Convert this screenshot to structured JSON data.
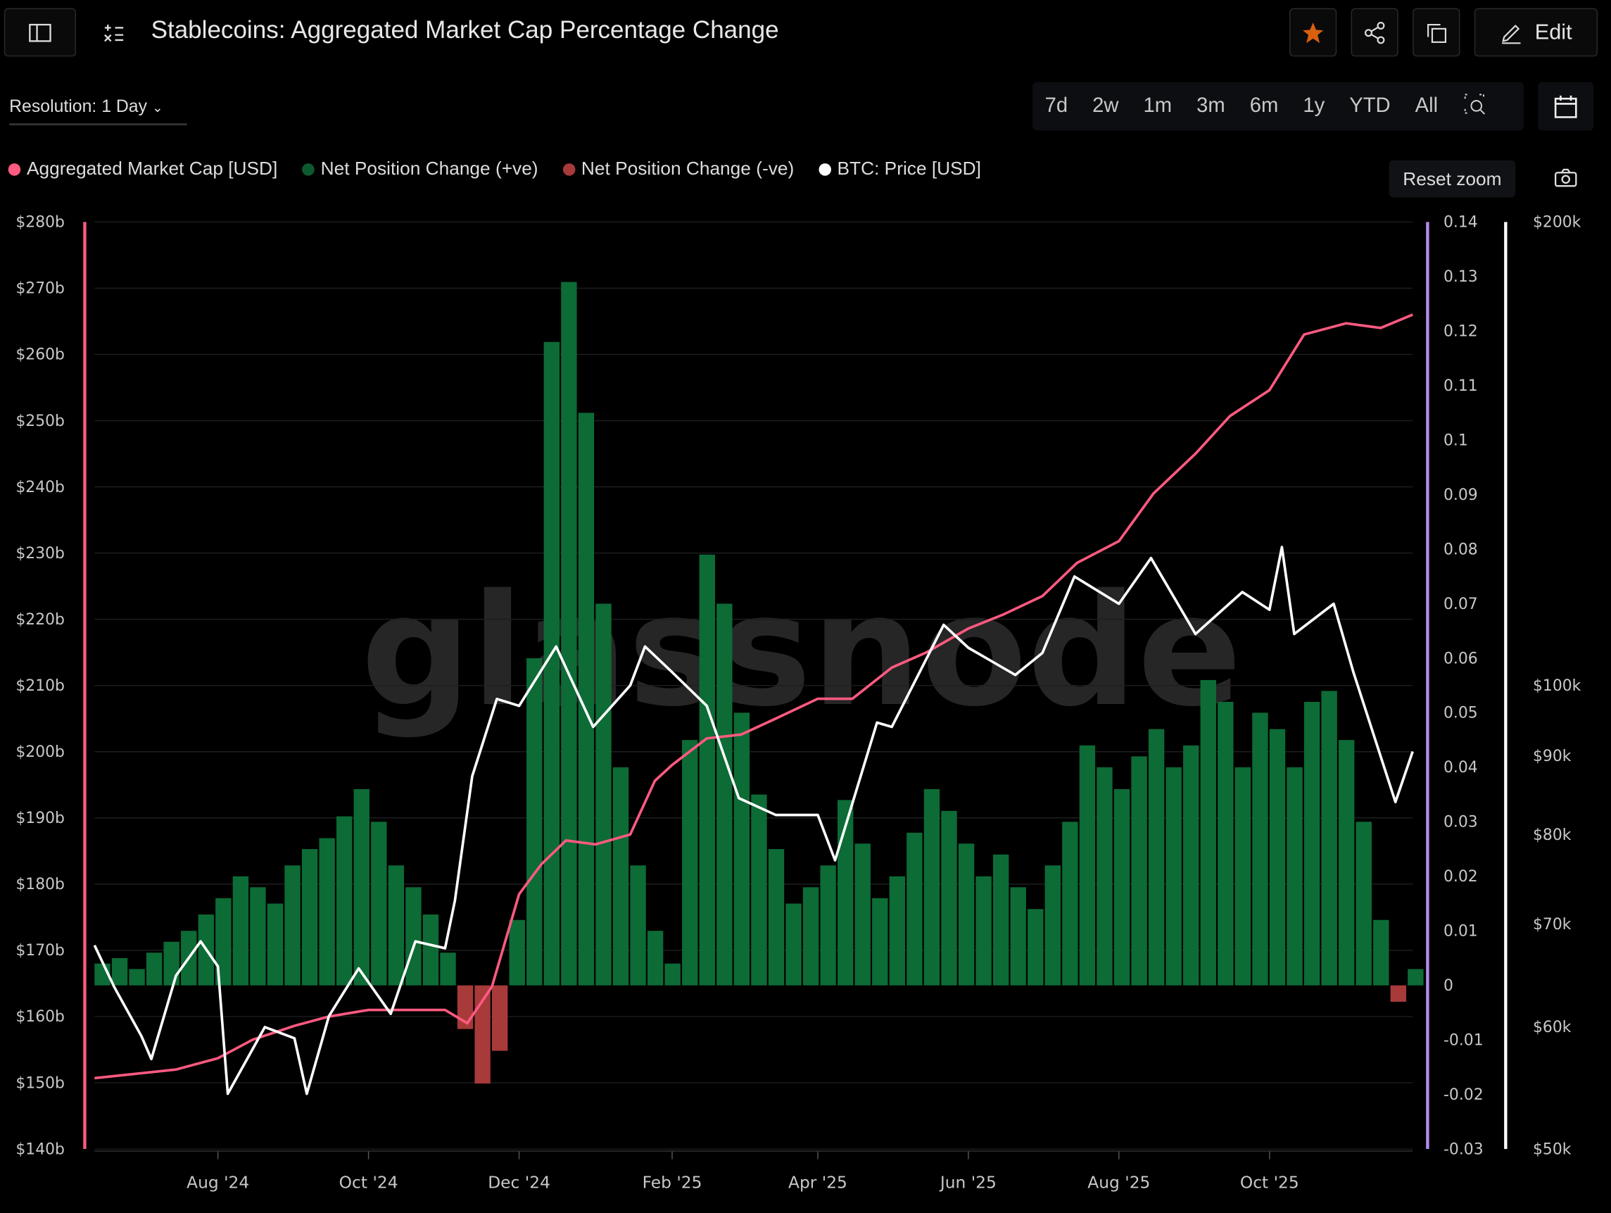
{
  "header": {
    "title": "Stablecoins: Aggregated Market Cap Percentage Change",
    "edit_label": "Edit"
  },
  "toolbar": {
    "resolution": "Resolution: 1 Day",
    "ranges": [
      "7d",
      "2w",
      "1m",
      "3m",
      "6m",
      "1y",
      "YTD",
      "All"
    ],
    "reset_zoom": "Reset zoom"
  },
  "colors": {
    "market_cap": "#ff5a80",
    "net_pos": "#0d6b36",
    "net_neg": "#a83a3a",
    "btc": "#ffffff",
    "mid_axis": "#b48cf0",
    "star": "#d9600f"
  },
  "watermark": "glassnode",
  "chart_data": {
    "type": "bar+line",
    "title": "Stablecoins: Aggregated Market Cap Percentage Change",
    "legend": [
      "Aggregated Market Cap [USD]",
      "Net Position Change (+ve)",
      "Net Position Change (-ve)",
      "BTC: Price [USD]"
    ],
    "legend_placement": "top-left",
    "x_range": [
      "2024-06-12",
      "2025-11-28"
    ],
    "x_ticks": [
      [
        "2024-08-01",
        "Aug '24"
      ],
      [
        "2024-10-01",
        "Oct '24"
      ],
      [
        "2024-12-01",
        "Dec '24"
      ],
      [
        "2025-02-01",
        "Feb '25"
      ],
      [
        "2025-04-01",
        "Apr '25"
      ],
      [
        "2025-06-01",
        "Jun '25"
      ],
      [
        "2025-08-01",
        "Aug '25"
      ],
      [
        "2025-10-01",
        "Oct '25"
      ]
    ],
    "y_left": {
      "label": "Aggregated Market Cap [USD]",
      "range": [
        140,
        280
      ],
      "unit": "b",
      "ticks": [
        "$280b",
        "$270b",
        "$260b",
        "$250b",
        "$240b",
        "$230b",
        "$220b",
        "$210b",
        "$200b",
        "$190b",
        "$180b",
        "$170b",
        "$160b",
        "$150b",
        "$140b"
      ]
    },
    "y_mid": {
      "label": "Net Position Change",
      "range": [
        -0.03,
        0.14
      ],
      "ticks": [
        "0.14",
        "0.13",
        "0.12",
        "0.11",
        "0.1",
        "0.09",
        "0.08",
        "0.07",
        "0.06",
        "0.05",
        "0.04",
        "0.03",
        "0.02",
        "0.01",
        "0",
        "-0.01",
        "-0.02",
        "-0.03"
      ]
    },
    "y_right": {
      "label": "BTC: Price [USD]",
      "scale": "log",
      "range": [
        50,
        200
      ],
      "unit": "k",
      "ticks": [
        [
          "$200k",
          200
        ],
        [
          "$100k",
          100
        ],
        [
          "$90k",
          90
        ],
        [
          "$80k",
          80
        ],
        [
          "$70k",
          70
        ],
        [
          "$60k",
          60
        ],
        [
          "$50k",
          50
        ]
      ]
    },
    "market_cap": [
      [
        "2024-06-12",
        150.7
      ],
      [
        "2024-07-15",
        152
      ],
      [
        "2024-08-01",
        153.7
      ],
      [
        "2024-08-15",
        156.5
      ],
      [
        "2024-09-01",
        158.6
      ],
      [
        "2024-09-15",
        160
      ],
      [
        "2024-10-01",
        161
      ],
      [
        "2024-10-15",
        161
      ],
      [
        "2024-11-01",
        161
      ],
      [
        "2024-11-10",
        159
      ],
      [
        "2024-11-20",
        164.5
      ],
      [
        "2024-12-01",
        178.5
      ],
      [
        "2024-12-10",
        183
      ],
      [
        "2024-12-20",
        186.6
      ],
      [
        "2025-01-01",
        186
      ],
      [
        "2025-01-15",
        187.5
      ],
      [
        "2025-01-25",
        195.6
      ],
      [
        "2025-02-01",
        198
      ],
      [
        "2025-02-15",
        202
      ],
      [
        "2025-03-01",
        202.6
      ],
      [
        "2025-03-15",
        205
      ],
      [
        "2025-04-01",
        208
      ],
      [
        "2025-04-15",
        208
      ],
      [
        "2025-05-01",
        212.7
      ],
      [
        "2025-05-15",
        215
      ],
      [
        "2025-06-01",
        218.6
      ],
      [
        "2025-06-15",
        220.7
      ],
      [
        "2025-07-01",
        223.5
      ],
      [
        "2025-07-15",
        228.5
      ],
      [
        "2025-08-01",
        231.8
      ],
      [
        "2025-08-15",
        239
      ],
      [
        "2025-09-01",
        245
      ],
      [
        "2025-09-15",
        250.7
      ],
      [
        "2025-10-01",
        254.6
      ],
      [
        "2025-10-15",
        263
      ],
      [
        "2025-11-01",
        264.7
      ],
      [
        "2025-11-15",
        264
      ],
      [
        "2025-11-28",
        266
      ]
    ],
    "btc_price": [
      [
        "2024-06-12",
        67.8
      ],
      [
        "2024-06-20",
        63.7
      ],
      [
        "2024-07-01",
        59.2
      ],
      [
        "2024-07-05",
        57.2
      ],
      [
        "2024-07-15",
        64.8
      ],
      [
        "2024-07-25",
        68.2
      ],
      [
        "2024-08-01",
        65.7
      ],
      [
        "2024-08-05",
        54.3
      ],
      [
        "2024-08-20",
        60
      ],
      [
        "2024-09-01",
        59
      ],
      [
        "2024-09-06",
        54.3
      ],
      [
        "2024-09-15",
        61
      ],
      [
        "2024-09-27",
        65.5
      ],
      [
        "2024-10-10",
        61.2
      ],
      [
        "2024-10-20",
        68.2
      ],
      [
        "2024-11-01",
        67.5
      ],
      [
        "2024-11-05",
        72.5
      ],
      [
        "2024-11-12",
        87.3
      ],
      [
        "2024-11-22",
        98
      ],
      [
        "2024-12-01",
        97
      ],
      [
        "2024-12-16",
        106
      ],
      [
        "2024-12-31",
        94
      ],
      [
        "2025-01-15",
        100
      ],
      [
        "2025-01-21",
        106
      ],
      [
        "2025-02-01",
        102
      ],
      [
        "2025-02-15",
        97
      ],
      [
        "2025-02-28",
        84.5
      ],
      [
        "2025-03-15",
        82.4
      ],
      [
        "2025-04-01",
        82.4
      ],
      [
        "2025-04-08",
        77
      ],
      [
        "2025-04-25",
        94.6
      ],
      [
        "2025-05-01",
        94
      ],
      [
        "2025-05-22",
        109.5
      ],
      [
        "2025-06-01",
        105.8
      ],
      [
        "2025-06-20",
        101.6
      ],
      [
        "2025-07-01",
        105
      ],
      [
        "2025-07-14",
        117.7
      ],
      [
        "2025-08-01",
        113
      ],
      [
        "2025-08-14",
        121
      ],
      [
        "2025-09-01",
        108
      ],
      [
        "2025-09-20",
        115
      ],
      [
        "2025-10-01",
        112
      ],
      [
        "2025-10-06",
        123
      ],
      [
        "2025-10-11",
        108
      ],
      [
        "2025-10-27",
        113
      ],
      [
        "2025-11-04",
        102
      ],
      [
        "2025-11-21",
        84
      ],
      [
        "2025-11-28",
        90.6
      ]
    ],
    "net_position_change": {
      "start": "2024-06-12",
      "step_days": 7,
      "values": [
        0.004,
        0.005,
        0.003,
        0.006,
        0.008,
        0.01,
        0.013,
        0.016,
        0.02,
        0.018,
        0.015,
        0.022,
        0.025,
        0.027,
        0.031,
        0.036,
        0.03,
        0.022,
        0.018,
        0.013,
        0.006,
        -0.008,
        -0.018,
        -0.012,
        0.012,
        0.06,
        0.118,
        0.129,
        0.105,
        0.07,
        0.04,
        0.022,
        0.01,
        0.004,
        0.045,
        0.079,
        0.07,
        0.05,
        0.035,
        0.025,
        0.015,
        0.018,
        0.022,
        0.034,
        0.026,
        0.016,
        0.02,
        0.028,
        0.036,
        0.032,
        0.026,
        0.02,
        0.024,
        0.018,
        0.014,
        0.022,
        0.03,
        0.044,
        0.04,
        0.036,
        0.042,
        0.047,
        0.04,
        0.044,
        0.056,
        0.052,
        0.04,
        0.05,
        0.047,
        0.04,
        0.052,
        0.054,
        0.045,
        0.03,
        0.012,
        -0.003,
        0.003
      ]
    }
  }
}
